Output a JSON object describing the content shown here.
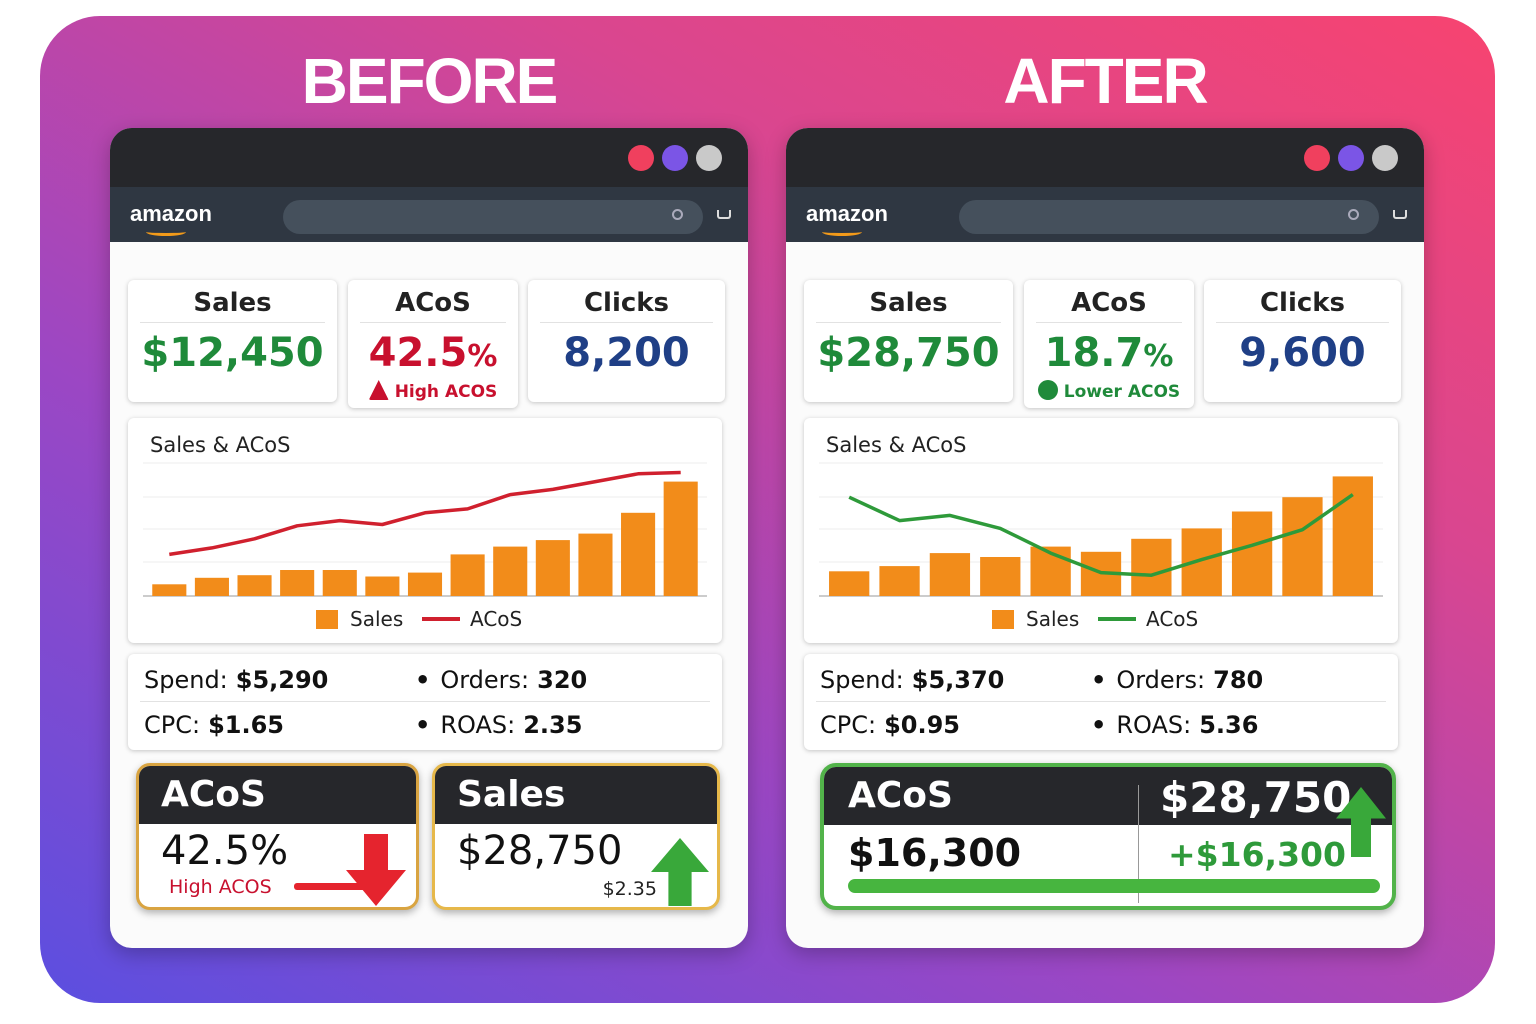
{
  "panels": [
    {
      "heading": "BEFORE",
      "brand": "amazon",
      "kpis": [
        {
          "label": "Sales",
          "value": "$12,450",
          "color": "#1f8a3a"
        },
        {
          "label": "ACoS",
          "value": "42.5",
          "unit": "%",
          "note": "High ACOS",
          "color": "#c8102e"
        },
        {
          "label": "Clicks",
          "value": "8,200",
          "color": "#1f3f86"
        }
      ],
      "chart": {
        "type": "bar",
        "title": "Sales & ACoS",
        "ylim": [
          0,
          100
        ],
        "series": [
          {
            "name": "Sales",
            "type": "bar",
            "color": "#f28c1a",
            "values": [
              9,
              14,
              16,
              20,
              20,
              15,
              18,
              32,
              38,
              43,
              48,
              64,
              88
            ]
          },
          {
            "name": "ACoS",
            "type": "line",
            "color": "#d0202e",
            "values": [
              32,
              37,
              44,
              54,
              58,
              55,
              64,
              67,
              78,
              82,
              88,
              94,
              95
            ]
          }
        ]
      },
      "stats": [
        {
          "label": "Spend:",
          "value": "$5,290"
        },
        {
          "label": "Orders:",
          "value": "320"
        },
        {
          "label": "CPC:",
          "value": "$1.65"
        },
        {
          "label": "ROAS:",
          "value": "2.35"
        }
      ],
      "summary_cards": [
        {
          "title": "ACoS",
          "value": "42.5%",
          "note": "High ACOS"
        },
        {
          "title": "Sales",
          "value": "$28,750",
          "note": "$2.35"
        }
      ]
    },
    {
      "heading": "AFTER",
      "brand": "amazon",
      "kpis": [
        {
          "label": "Sales",
          "value": "$28,750",
          "color": "#1f8a3a"
        },
        {
          "label": "ACoS",
          "value": "18.7",
          "unit": "%",
          "note": "Lower ACOS",
          "color": "#1f8a3a"
        },
        {
          "label": "Clicks",
          "value": "9,600",
          "color": "#1f3f86"
        }
      ],
      "chart": {
        "type": "bar",
        "title": "Sales & ACoS",
        "ylim": [
          0,
          100
        ],
        "series": [
          {
            "name": "Sales",
            "type": "bar",
            "color": "#f28c1a",
            "values": [
              19,
              23,
              33,
              30,
              38,
              34,
              44,
              52,
              65,
              76,
              92
            ]
          },
          {
            "name": "ACoS",
            "type": "line",
            "color": "#2e9a3a",
            "values": [
              76,
              58,
              62,
              52,
              33,
              18,
              16,
              28,
              39,
              51,
              78
            ]
          }
        ]
      },
      "stats": [
        {
          "label": "Spend:",
          "value": "$5,370"
        },
        {
          "label": "Orders:",
          "value": "780"
        },
        {
          "label": "CPC:",
          "value": "$0.95"
        },
        {
          "label": "ROAS:",
          "value": "5.36"
        }
      ],
      "summary_cards": [
        {
          "title": "ACoS",
          "headline": "$28,750",
          "value": "$16,300",
          "change": "+$16,300"
        }
      ]
    }
  ]
}
